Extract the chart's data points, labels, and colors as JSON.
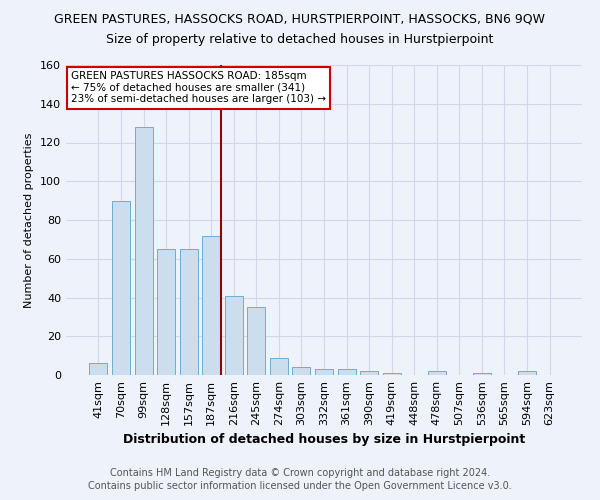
{
  "title": "GREEN PASTURES, HASSOCKS ROAD, HURSTPIERPOINT, HASSOCKS, BN6 9QW",
  "subtitle": "Size of property relative to detached houses in Hurstpierpoint",
  "xlabel": "Distribution of detached houses by size in Hurstpierpoint",
  "ylabel": "Number of detached properties",
  "footer1": "Contains HM Land Registry data © Crown copyright and database right 2024.",
  "footer2": "Contains public sector information licensed under the Open Government Licence v3.0.",
  "categories": [
    "41sqm",
    "70sqm",
    "99sqm",
    "128sqm",
    "157sqm",
    "187sqm",
    "216sqm",
    "245sqm",
    "274sqm",
    "303sqm",
    "332sqm",
    "361sqm",
    "390sqm",
    "419sqm",
    "448sqm",
    "478sqm",
    "507sqm",
    "536sqm",
    "565sqm",
    "594sqm",
    "623sqm"
  ],
  "values": [
    6,
    90,
    128,
    65,
    65,
    72,
    41,
    35,
    9,
    4,
    3,
    3,
    2,
    1,
    0,
    2,
    0,
    1,
    0,
    2,
    0
  ],
  "bar_color": "#ccdded",
  "bar_edge_color": "#6aaed6",
  "grid_color": "#d0d8e8",
  "bg_color": "#eef2fa",
  "vline_x": 5.42,
  "vline_color": "#990000",
  "annotation_text": "GREEN PASTURES HASSOCKS ROAD: 185sqm\n← 75% of detached houses are smaller (341)\n23% of semi-detached houses are larger (103) →",
  "annotation_box_color": "white",
  "annotation_box_edge_color": "#cc0000",
  "ylim": [
    0,
    160
  ],
  "yticks": [
    0,
    20,
    40,
    60,
    80,
    100,
    120,
    140,
    160
  ],
  "title_fontsize": 9,
  "subtitle_fontsize": 9,
  "xlabel_fontsize": 9,
  "ylabel_fontsize": 8,
  "tick_fontsize": 8,
  "footer_fontsize": 7
}
